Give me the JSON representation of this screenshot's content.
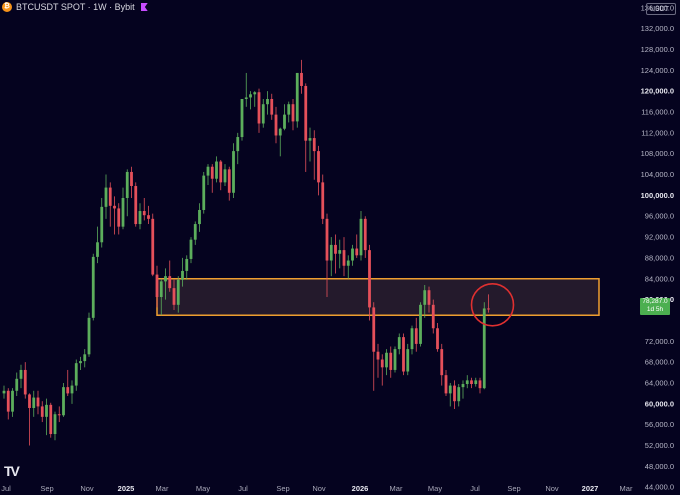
{
  "header": {
    "title": "BTCUSDT SPOT · 1W · Bybit",
    "icon": "bitcoin-icon",
    "marker": "flag-icon"
  },
  "currency": "USDT",
  "price_tag": {
    "price": "78,287.0",
    "countdown": "1d 5h"
  },
  "logo": "TV",
  "y_axis": [
    {
      "label": "136,000.0",
      "value": 136000
    },
    {
      "label": "132,000.0",
      "value": 132000
    },
    {
      "label": "128,000.0",
      "value": 128000
    },
    {
      "label": "124,000.0",
      "value": 124000
    },
    {
      "label": "120,000.0",
      "value": 120000,
      "bold": true
    },
    {
      "label": "116,000.0",
      "value": 116000
    },
    {
      "label": "112,000.0",
      "value": 112000
    },
    {
      "label": "108,000.0",
      "value": 108000
    },
    {
      "label": "104,000.0",
      "value": 104000
    },
    {
      "label": "100,000.0",
      "value": 100000,
      "bold": true
    },
    {
      "label": "96,000.0",
      "value": 96000
    },
    {
      "label": "92,000.0",
      "value": 92000
    },
    {
      "label": "88,000.0",
      "value": 88000
    },
    {
      "label": "84,000.0",
      "value": 84000
    },
    {
      "label": "80,000.0",
      "value": 80000,
      "bold": true
    },
    {
      "label": "72,000.0",
      "value": 72000
    },
    {
      "label": "68,000.0",
      "value": 68000
    },
    {
      "label": "64,000.0",
      "value": 64000
    },
    {
      "label": "60,000.0",
      "value": 60000,
      "bold": true
    },
    {
      "label": "56,000.0",
      "value": 56000
    },
    {
      "label": "52,000.0",
      "value": 52000
    },
    {
      "label": "48,000.0",
      "value": 48000
    },
    {
      "label": "44,000.0",
      "value": 44000
    }
  ],
  "x_axis": [
    {
      "label": "Jul"
    },
    {
      "label": "Sep"
    },
    {
      "label": "Nov"
    },
    {
      "label": "2025",
      "bold": true
    },
    {
      "label": "Mar"
    },
    {
      "label": "May"
    },
    {
      "label": "Jul"
    },
    {
      "label": "Sep"
    },
    {
      "label": "Nov"
    },
    {
      "label": "2026",
      "bold": true
    },
    {
      "label": "Mar"
    },
    {
      "label": "May"
    },
    {
      "label": "Jul"
    },
    {
      "label": "Sep"
    },
    {
      "label": "Nov"
    },
    {
      "label": "2027",
      "bold": true
    },
    {
      "label": "Mar"
    }
  ],
  "chart_data": {
    "type": "candlestick",
    "ylim": [
      42500,
      137500
    ],
    "colors": {
      "up": "#5cae5c",
      "down": "#e5505a",
      "zone_border": "#f0a030",
      "zone_fill": "#241a2c",
      "circle": "#e03030",
      "background": "#05031f"
    },
    "zone": {
      "top": 84000,
      "bottom": 77000
    },
    "highlight": {
      "value": 79000
    },
    "candles": [
      [
        62000,
        63500,
        61000,
        62500
      ],
      [
        62500,
        63000,
        57000,
        58500
      ],
      [
        58500,
        63000,
        57500,
        62500
      ],
      [
        62500,
        66000,
        61500,
        64800
      ],
      [
        64800,
        67500,
        63000,
        66500
      ],
      [
        66500,
        68000,
        61000,
        61800
      ],
      [
        61800,
        62000,
        52000,
        59200
      ],
      [
        59200,
        62500,
        57500,
        61200
      ],
      [
        61200,
        62500,
        58000,
        59500
      ],
      [
        59500,
        60500,
        56500,
        57500
      ],
      [
        57500,
        61000,
        54000,
        59800
      ],
      [
        59800,
        60200,
        53500,
        54200
      ],
      [
        54200,
        58500,
        53000,
        58000
      ],
      [
        58000,
        59500,
        56500,
        57800
      ],
      [
        57800,
        64000,
        57500,
        63200
      ],
      [
        63200,
        66500,
        61500,
        62000
      ],
      [
        62000,
        64500,
        60000,
        63500
      ],
      [
        63500,
        68500,
        62500,
        67800
      ],
      [
        67800,
        69000,
        66500,
        68200
      ],
      [
        68200,
        70500,
        67000,
        69500
      ],
      [
        69500,
        77500,
        69000,
        76500
      ],
      [
        76500,
        88800,
        76000,
        88200
      ],
      [
        88200,
        94000,
        87000,
        91000
      ],
      [
        91000,
        99500,
        90000,
        97800
      ],
      [
        97800,
        104000,
        95500,
        101500
      ],
      [
        101500,
        102500,
        94000,
        98000
      ],
      [
        98000,
        99800,
        92500,
        97500
      ],
      [
        97500,
        98500,
        92500,
        94000
      ],
      [
        94000,
        101500,
        93500,
        99500
      ],
      [
        99500,
        105000,
        96000,
        104500
      ],
      [
        104500,
        105500,
        99500,
        101800
      ],
      [
        101800,
        102500,
        94000,
        94500
      ],
      [
        94500,
        98500,
        93500,
        97000
      ],
      [
        97000,
        99500,
        95200,
        96200
      ],
      [
        96200,
        98000,
        94500,
        95500
      ],
      [
        95500,
        96500,
        84500,
        84800
      ],
      [
        84800,
        86500,
        78500,
        80500
      ],
      [
        80500,
        84000,
        77000,
        83500
      ],
      [
        83500,
        86000,
        80000,
        84500
      ],
      [
        84500,
        87500,
        81500,
        82200
      ],
      [
        82200,
        83800,
        78000,
        79000
      ],
      [
        79000,
        84500,
        77500,
        83800
      ],
      [
        83800,
        88000,
        82500,
        85500
      ],
      [
        85500,
        88500,
        83800,
        87800
      ],
      [
        87800,
        92000,
        87000,
        91500
      ],
      [
        91500,
        95000,
        90500,
        94500
      ],
      [
        94500,
        98500,
        93000,
        97200
      ],
      [
        97200,
        104500,
        96500,
        103800
      ],
      [
        103800,
        106000,
        102000,
        105500
      ],
      [
        105500,
        106000,
        100500,
        103200
      ],
      [
        103200,
        107500,
        102500,
        106500
      ],
      [
        106500,
        106800,
        101000,
        102500
      ],
      [
        102500,
        106000,
        101800,
        105000
      ],
      [
        105000,
        105500,
        99000,
        100500
      ],
      [
        100500,
        110000,
        99500,
        108500
      ],
      [
        108500,
        112000,
        106000,
        111200
      ],
      [
        111200,
        118000,
        110500,
        118500
      ],
      [
        118500,
        123500,
        117000,
        118800
      ],
      [
        118800,
        120000,
        116500,
        119400
      ],
      [
        119400,
        120000,
        117000,
        119800
      ],
      [
        119800,
        120500,
        112000,
        113800
      ],
      [
        113800,
        118500,
        113000,
        117500
      ],
      [
        117500,
        120000,
        115500,
        118500
      ],
      [
        118500,
        119500,
        114500,
        115500
      ],
      [
        115500,
        117000,
        110000,
        111500
      ],
      [
        111500,
        113000,
        107500,
        112800
      ],
      [
        112800,
        117500,
        112500,
        115500
      ],
      [
        115500,
        118000,
        114000,
        117500
      ],
      [
        117500,
        118500,
        112500,
        114200
      ],
      [
        114200,
        123500,
        113000,
        123500
      ],
      [
        123500,
        126000,
        119500,
        121000
      ],
      [
        121000,
        121500,
        104500,
        110500
      ],
      [
        110500,
        113000,
        106500,
        111000
      ],
      [
        111000,
        112500,
        103000,
        108500
      ],
      [
        108500,
        109500,
        100000,
        102500
      ],
      [
        102500,
        104000,
        94500,
        95500
      ],
      [
        95500,
        96500,
        80500,
        87500
      ],
      [
        87500,
        92000,
        84500,
        90500
      ],
      [
        90500,
        92500,
        85000,
        88800
      ],
      [
        88800,
        91500,
        86000,
        89500
      ],
      [
        89500,
        92000,
        84500,
        86500
      ],
      [
        86500,
        88500,
        84000,
        87500
      ],
      [
        87500,
        90500,
        86500,
        89800
      ],
      [
        89800,
        92500,
        88000,
        88500
      ],
      [
        88500,
        97000,
        87500,
        95500
      ],
      [
        95500,
        96000,
        88000,
        89500
      ],
      [
        89500,
        90500,
        76000,
        78500
      ],
      [
        78500,
        79500,
        62500,
        70000
      ],
      [
        70000,
        71500,
        65000,
        68500
      ],
      [
        68500,
        69500,
        63500,
        67000
      ],
      [
        67000,
        70500,
        65500,
        69800
      ],
      [
        69800,
        71000,
        65000,
        66500
      ],
      [
        66500,
        71000,
        66000,
        70500
      ],
      [
        70500,
        73500,
        69500,
        72800
      ],
      [
        72800,
        73500,
        65500,
        66200
      ],
      [
        66200,
        71500,
        65500,
        70500
      ],
      [
        70500,
        75000,
        69500,
        74500
      ],
      [
        74500,
        76500,
        70000,
        71500
      ],
      [
        71500,
        79500,
        71000,
        79000
      ],
      [
        79000,
        82800,
        76500,
        81800
      ],
      [
        81800,
        82500,
        77500,
        79000
      ],
      [
        79000,
        80000,
        73500,
        74500
      ],
      [
        74500,
        75500,
        70000,
        70500
      ],
      [
        70500,
        71500,
        63500,
        65500
      ],
      [
        65500,
        66500,
        61500,
        62000
      ],
      [
        62000,
        64000,
        59500,
        63500
      ],
      [
        63500,
        64500,
        59000,
        60500
      ],
      [
        60500,
        63800,
        59500,
        63200
      ],
      [
        63200,
        64500,
        61000,
        63800
      ],
      [
        63800,
        65500,
        63000,
        64500
      ],
      [
        64500,
        65000,
        63000,
        63800
      ],
      [
        63800,
        65000,
        63300,
        64500
      ],
      [
        64500,
        65000,
        62000,
        63000
      ],
      [
        63000,
        79500,
        62800,
        78300
      ],
      [
        78300,
        81000,
        77500,
        78287
      ]
    ]
  }
}
